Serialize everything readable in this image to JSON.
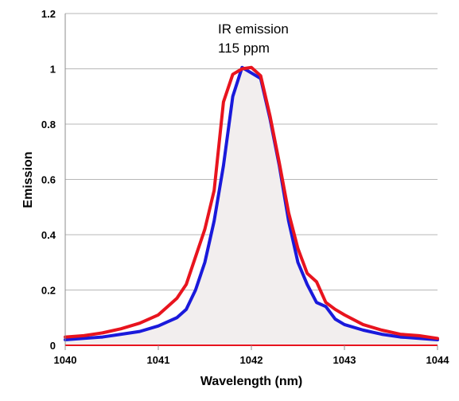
{
  "chart_data": {
    "type": "line",
    "title": "",
    "xlabel": "Wavelength (nm)",
    "ylabel": "Emission",
    "xlim": [
      1040,
      1044
    ],
    "ylim": [
      0,
      1.2
    ],
    "x_ticks": [
      "1040",
      "1041",
      "1042",
      "1043",
      "1044"
    ],
    "y_ticks": [
      "0",
      "0.2",
      "0.4",
      "0.6",
      "0.8",
      "1",
      "1.2"
    ],
    "grid": "horizontal",
    "annotations": [
      "IR emission",
      "115 ppm"
    ],
    "colors": {
      "blue": "#1a1adb",
      "red": "#e8141e",
      "fill": "#f2eeee",
      "grid": "#b7b7b7"
    },
    "series": [
      {
        "color": "blue",
        "x": [
          1040.0,
          1040.2,
          1040.4,
          1040.6,
          1040.8,
          1041.0,
          1041.1,
          1041.2,
          1041.3,
          1041.4,
          1041.5,
          1041.6,
          1041.7,
          1041.8,
          1041.9,
          1042.0,
          1042.1,
          1042.2,
          1042.3,
          1042.4,
          1042.5,
          1042.6,
          1042.7,
          1042.8,
          1042.9,
          1043.0,
          1043.2,
          1043.4,
          1043.6,
          1043.8,
          1044.0
        ],
        "y": [
          0.02,
          0.025,
          0.03,
          0.04,
          0.05,
          0.07,
          0.085,
          0.1,
          0.13,
          0.2,
          0.3,
          0.45,
          0.65,
          0.9,
          1.005,
          0.985,
          0.965,
          0.82,
          0.65,
          0.45,
          0.3,
          0.22,
          0.155,
          0.14,
          0.095,
          0.075,
          0.055,
          0.04,
          0.03,
          0.025,
          0.02
        ]
      },
      {
        "color": "red",
        "x": [
          1040.0,
          1040.2,
          1040.4,
          1040.6,
          1040.8,
          1041.0,
          1041.1,
          1041.2,
          1041.3,
          1041.4,
          1041.5,
          1041.6,
          1041.7,
          1041.8,
          1041.9,
          1042.0,
          1042.1,
          1042.2,
          1042.3,
          1042.4,
          1042.5,
          1042.6,
          1042.7,
          1042.8,
          1042.9,
          1043.0,
          1043.2,
          1043.4,
          1043.6,
          1043.8,
          1044.0
        ],
        "y": [
          0.03,
          0.035,
          0.045,
          0.06,
          0.08,
          0.11,
          0.14,
          0.17,
          0.22,
          0.32,
          0.42,
          0.56,
          0.88,
          0.98,
          1.0,
          1.005,
          0.975,
          0.83,
          0.66,
          0.48,
          0.35,
          0.26,
          0.23,
          0.155,
          0.13,
          0.11,
          0.075,
          0.055,
          0.04,
          0.035,
          0.025
        ]
      }
    ]
  }
}
